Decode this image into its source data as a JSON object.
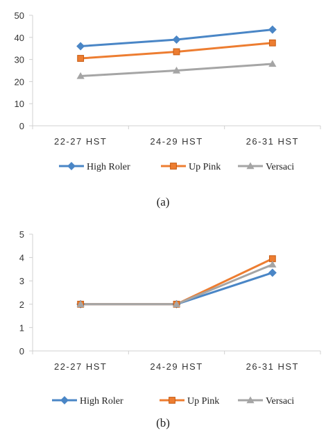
{
  "chart_data": [
    {
      "type": "line",
      "categories": [
        "22-27 HST",
        "24-29 HST",
        "26-31 HST"
      ],
      "series": [
        {
          "name": "High Roler",
          "values": [
            36,
            39,
            43.5
          ],
          "marker": "diamond"
        },
        {
          "name": "Up Pink",
          "values": [
            30.5,
            33.5,
            37.5
          ],
          "marker": "square"
        },
        {
          "name": "Versaci",
          "values": [
            22.5,
            25,
            28
          ],
          "marker": "triangle"
        }
      ],
      "ylim": [
        0,
        50
      ],
      "yticks": [
        0,
        10,
        20,
        30,
        40,
        50
      ],
      "grid": false,
      "legend": "bottom",
      "caption": "(a)"
    },
    {
      "type": "line",
      "categories": [
        "22-27 HST",
        "24-29 HST",
        "26-31 HST"
      ],
      "series": [
        {
          "name": "High Roler",
          "values": [
            2,
            2,
            3.35
          ],
          "marker": "diamond"
        },
        {
          "name": "Up Pink",
          "values": [
            2,
            2,
            3.95
          ],
          "marker": "square"
        },
        {
          "name": "Versaci",
          "values": [
            2,
            2,
            3.7
          ],
          "marker": "triangle"
        }
      ],
      "ylim": [
        0,
        5
      ],
      "yticks": [
        0,
        1,
        2,
        3,
        4,
        5
      ],
      "grid": false,
      "legend": "bottom",
      "caption": "(b)"
    }
  ],
  "colors": {
    "High Roler": "#4a86c6",
    "Up Pink": "#ed7d31",
    "Versaci": "#a5a5a5",
    "axis": "#d0d0d0"
  }
}
